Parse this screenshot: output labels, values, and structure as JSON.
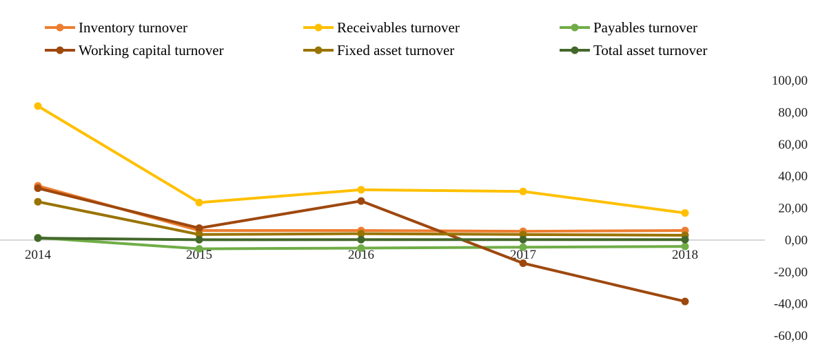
{
  "chart_data": {
    "type": "line",
    "title": "",
    "xlabel": "",
    "ylabel": "",
    "categories": [
      "2014",
      "2015",
      "2016",
      "2017",
      "2018"
    ],
    "ylim": [
      -60,
      100
    ],
    "y_ticks": [
      100,
      80,
      60,
      40,
      20,
      0,
      -20,
      -40,
      -60
    ],
    "y_tick_labels": [
      "100,00",
      "80,00",
      "60,00",
      "40,00",
      "20,00",
      "0,00",
      "-20,00",
      "-40,00",
      "-60,00"
    ],
    "y_axis_position": "right",
    "grid": false,
    "legend_position": "top",
    "series": [
      {
        "name": "Inventory turnover",
        "color": "#ED7D31",
        "values": [
          34,
          6,
          6,
          5.5,
          6
        ]
      },
      {
        "name": "Receivables turnover",
        "color": "#FFC000",
        "values": [
          84,
          23.5,
          31.5,
          30.5,
          17
        ]
      },
      {
        "name": "Payables turnover",
        "color": "#70AD47",
        "values": [
          1.5,
          -5.5,
          -5,
          -4.5,
          -4
        ]
      },
      {
        "name": "Working capital turnover",
        "color": "#9E480E",
        "values": [
          32.5,
          7.5,
          24.5,
          -14.5,
          -38.5
        ]
      },
      {
        "name": "Fixed asset turnover",
        "color": "#997300",
        "values": [
          24,
          3.5,
          4,
          3.5,
          3
        ]
      },
      {
        "name": "Total asset turnover",
        "color": "#43682B",
        "values": [
          1.2,
          0.2,
          0.3,
          0.3,
          0.3
        ]
      }
    ]
  }
}
